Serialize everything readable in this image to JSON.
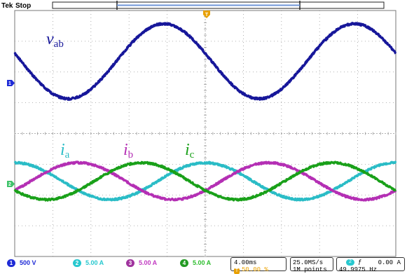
{
  "status": {
    "brand": "Tek",
    "state": "Stop",
    "trigger_marker": "T"
  },
  "markers": {
    "ch1": "1",
    "ch2": "2"
  },
  "channels": [
    {
      "id": "1",
      "scale": "500 V",
      "color": "#1f2bd6"
    },
    {
      "id": "2",
      "scale": "5.00 A",
      "color": "#28c8cf"
    },
    {
      "id": "3",
      "scale": "5.00 A",
      "color": "#c23cc2"
    },
    {
      "id": "4",
      "scale": "5.00 A",
      "color": "#2ebd2e"
    }
  ],
  "timebase": {
    "time_div": "4.00ms",
    "trigger_pos": "50.00 %"
  },
  "acquisition": {
    "rate": "25.0MS/s",
    "points": "1M points"
  },
  "trigger": {
    "source": "2",
    "level": "0.00 A",
    "frequency": "49.9975 Hz"
  },
  "colors": {
    "vab": "#17179a",
    "ia": "#2abcc6",
    "ib": "#b42fb4",
    "ic": "#19a019",
    "grid": "#9a9a9a",
    "orange": "#e8a000"
  },
  "chart_data": {
    "type": "line",
    "x_unit": "div",
    "x_range": [
      0,
      10
    ],
    "y_range_div": [
      -4,
      4
    ],
    "grid": true,
    "series": [
      {
        "name": "v_ab",
        "label_symbol": "v",
        "label_sub": "ab",
        "channel": "1",
        "color": "#17179a",
        "amplitude_div": 1.22,
        "offset_div": 2.35,
        "period_div": 5.0,
        "phase_deg": 168,
        "x": [
          0,
          1,
          2,
          3,
          4,
          5,
          6,
          7,
          8,
          9,
          10
        ],
        "y": [
          2.6,
          3.35,
          2.62,
          1.3,
          1.22,
          2.6,
          3.35,
          2.62,
          1.3,
          1.22,
          2.6
        ]
      },
      {
        "name": "i_a",
        "label_symbol": "i",
        "label_sub": "a",
        "channel": "2",
        "color": "#2abcc6",
        "amplitude_div": 0.6,
        "offset_div": -1.55,
        "period_div": 5.0,
        "phase_deg": 90,
        "x": [
          0,
          1,
          2,
          3,
          4,
          5,
          6,
          7,
          8,
          9,
          10
        ],
        "y": [
          -0.95,
          -1.37,
          -2.12,
          -1.92,
          -1.24,
          -0.95,
          -1.37,
          -2.12,
          -1.92,
          -1.24,
          -0.95
        ]
      },
      {
        "name": "i_b",
        "label_symbol": "i",
        "label_sub": "b",
        "channel": "3",
        "color": "#b42fb4",
        "amplitude_div": 0.6,
        "offset_div": -1.55,
        "period_div": 5.0,
        "phase_deg": -30,
        "x": [
          0,
          1,
          2,
          3,
          4,
          5,
          6,
          7,
          8,
          9,
          10
        ],
        "y": [
          -1.85,
          -2.14,
          -1.45,
          -0.95,
          -1.35,
          -1.85,
          -2.14,
          -1.45,
          -0.95,
          -1.35,
          -1.85
        ]
      },
      {
        "name": "i_c",
        "label_symbol": "i",
        "label_sub": "c",
        "channel": "4",
        "color": "#19a019",
        "amplitude_div": 0.6,
        "offset_div": -1.55,
        "period_div": 5.0,
        "phase_deg": 210,
        "x": [
          0,
          1,
          2,
          3,
          4,
          5,
          6,
          7,
          8,
          9,
          10
        ],
        "y": [
          -1.25,
          -1.18,
          -1.81,
          -2.12,
          -1.54,
          -1.25,
          -1.18,
          -1.81,
          -2.12,
          -1.54,
          -1.25
        ]
      }
    ]
  }
}
